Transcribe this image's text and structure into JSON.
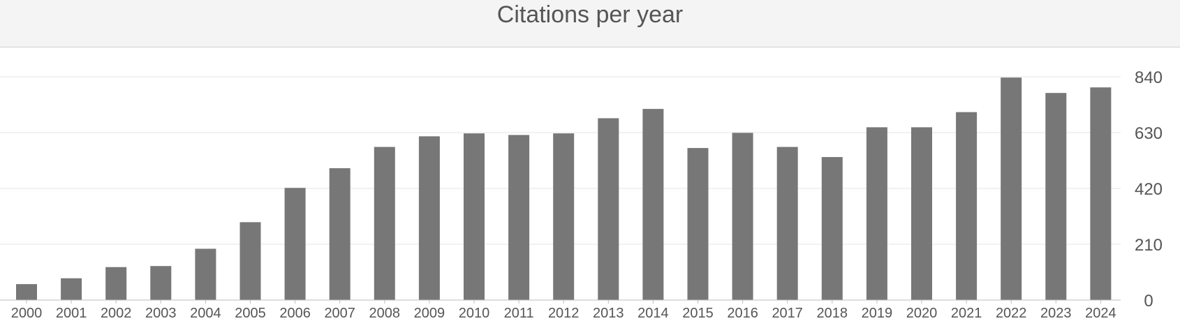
{
  "header": {
    "title": "Citations per year"
  },
  "chart_data": {
    "type": "bar",
    "title": "Citations per year",
    "xlabel": "",
    "ylabel": "",
    "categories": [
      "2000",
      "2001",
      "2002",
      "2003",
      "2004",
      "2005",
      "2006",
      "2007",
      "2008",
      "2009",
      "2010",
      "2011",
      "2012",
      "2013",
      "2014",
      "2015",
      "2016",
      "2017",
      "2018",
      "2019",
      "2020",
      "2021",
      "2022",
      "2023",
      "2024"
    ],
    "values": [
      60,
      82,
      124,
      128,
      193,
      293,
      422,
      496,
      576,
      616,
      627,
      621,
      627,
      684,
      719,
      572,
      629,
      576,
      538,
      650,
      650,
      707,
      837,
      779,
      800
    ],
    "ylim": [
      0,
      840
    ],
    "yticks": [
      0,
      210,
      420,
      630,
      840
    ],
    "y_axis_side": "right",
    "grid": true,
    "bar_color": "#777777"
  }
}
